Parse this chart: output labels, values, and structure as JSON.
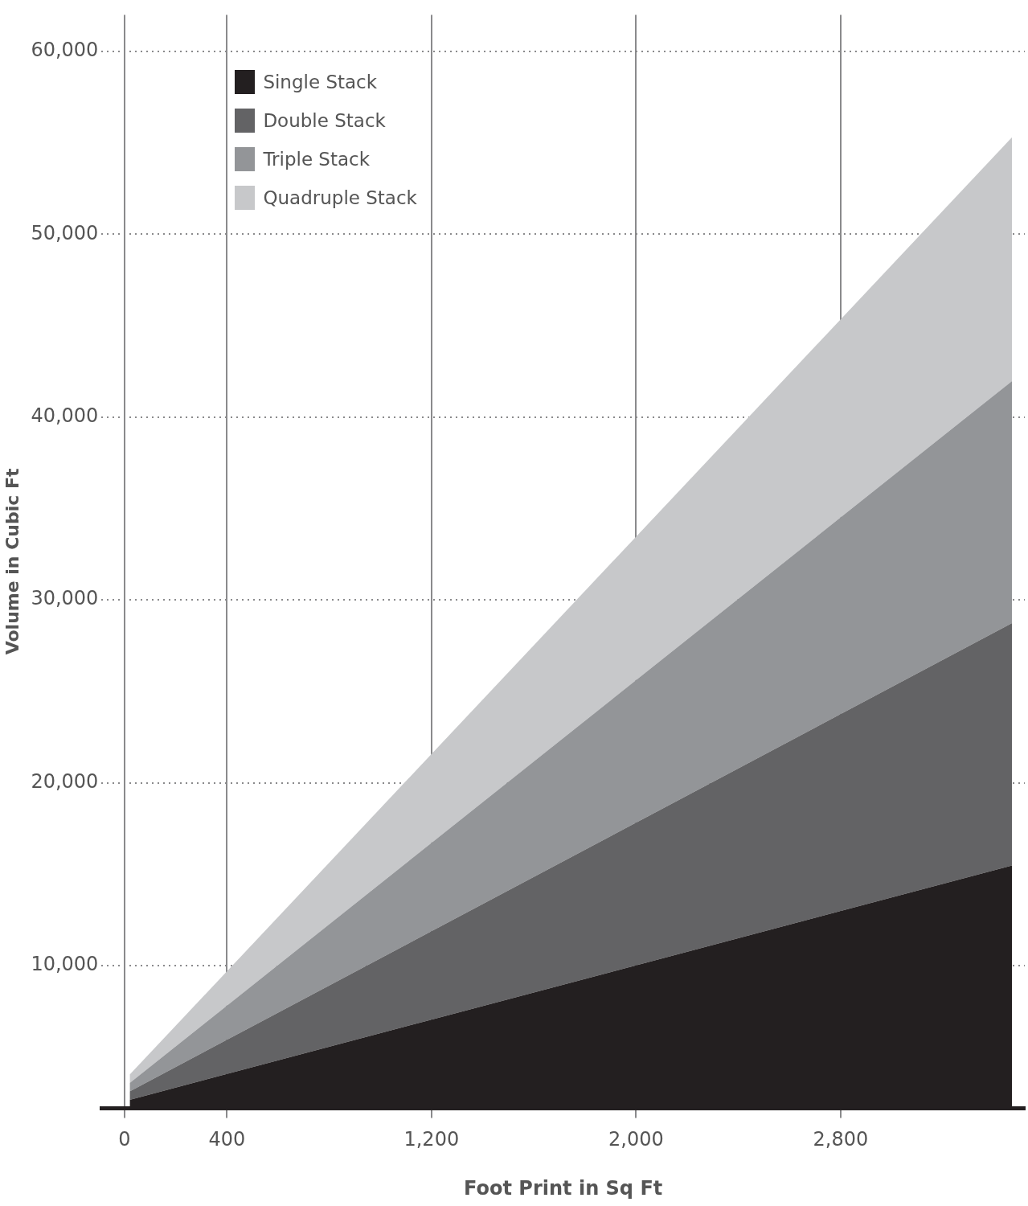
{
  "chart_data": {
    "type": "area",
    "xlabel": "Foot Print in Sq Ft",
    "ylabel": "Volume in Cubic Ft",
    "x": [
      20,
      3470
    ],
    "series": [
      {
        "name": "Single Stack",
        "color": "#231f20",
        "values": [
          2660,
          15480
        ]
      },
      {
        "name": "Double Stack",
        "color": "#636365",
        "values": [
          3120,
          28730
        ]
      },
      {
        "name": "Triple Stack",
        "color": "#939598",
        "values": [
          3580,
          41970
        ]
      },
      {
        "name": "Quadruple Stack",
        "color": "#c7c8ca",
        "values": [
          4040,
          55300
        ]
      }
    ],
    "xlim": [
      -90,
      3520
    ],
    "xticks": [
      0,
      400,
      {
        "value": 1200,
        "label": "1,200"
      },
      {
        "value": 2000,
        "label": "2,000"
      },
      {
        "value": 2800,
        "label": "2,800"
      }
    ],
    "ylim": [
      2200,
      62000
    ],
    "yticks": [
      {
        "value": 10000,
        "label": "10,000"
      },
      {
        "value": 20000,
        "label": "20,000"
      },
      {
        "value": 30000,
        "label": "30,000"
      },
      {
        "value": 40000,
        "label": "40,000"
      },
      {
        "value": 50000,
        "label": "50,000"
      },
      {
        "value": 60000,
        "label": "60,000"
      }
    ],
    "grid": true,
    "legend": "top left"
  }
}
